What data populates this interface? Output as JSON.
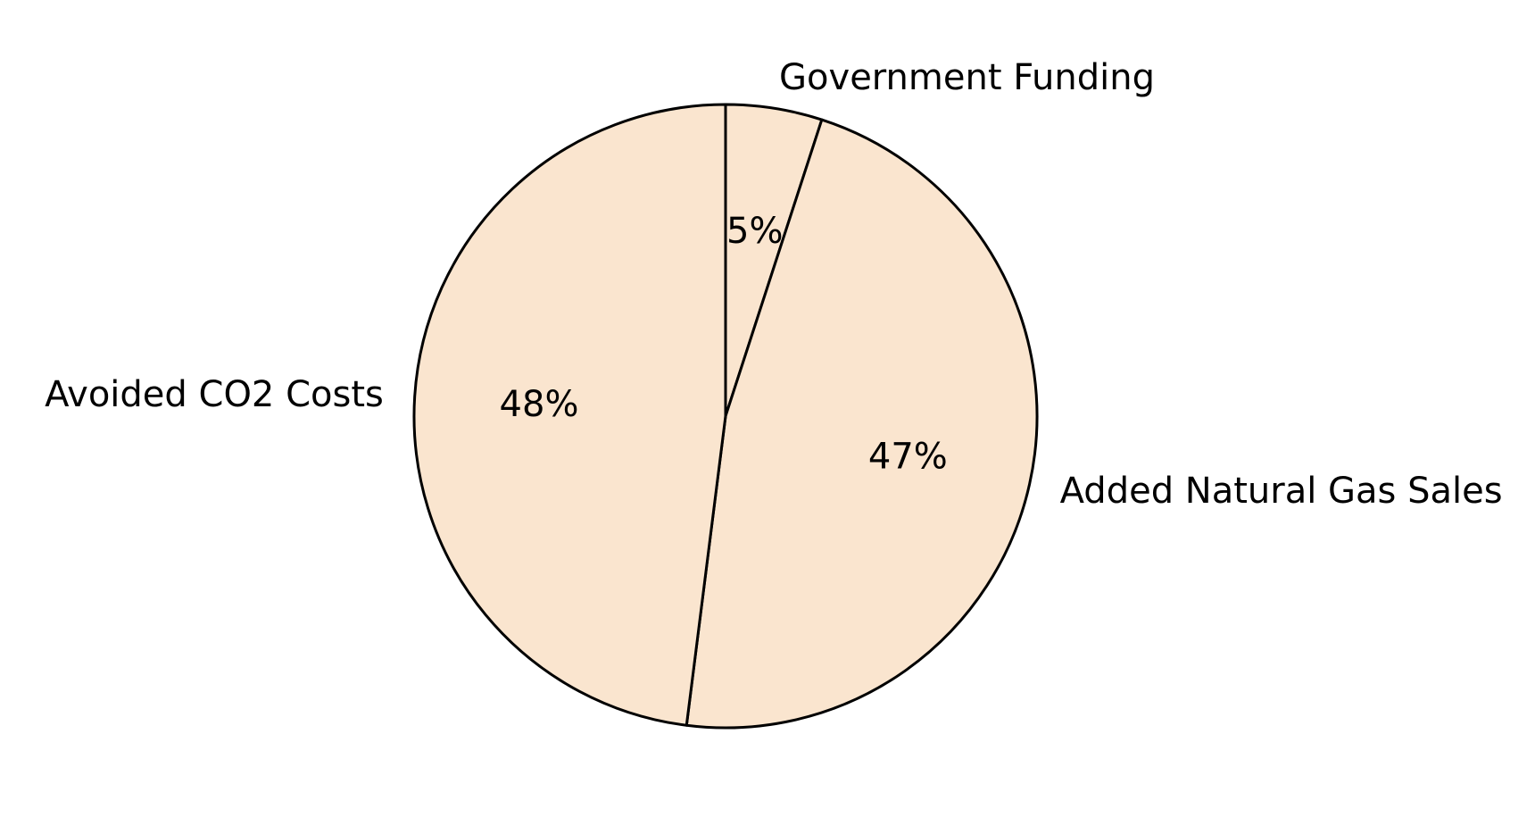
{
  "chart_data": {
    "type": "pie",
    "title": "",
    "start_angle_deg": 90,
    "direction": "clockwise",
    "slices": [
      {
        "label": "Government Funding",
        "value": 5,
        "display": "5%",
        "color": "#fae5cf"
      },
      {
        "label": "Added Natural Gas Sales",
        "value": 47,
        "display": "47%",
        "color": "#fae5cf"
      },
      {
        "label": "Avoided CO2 Costs",
        "value": 48,
        "display": "48%",
        "color": "#fae5cf"
      }
    ],
    "edge_color": "#000000",
    "legend": "none"
  }
}
